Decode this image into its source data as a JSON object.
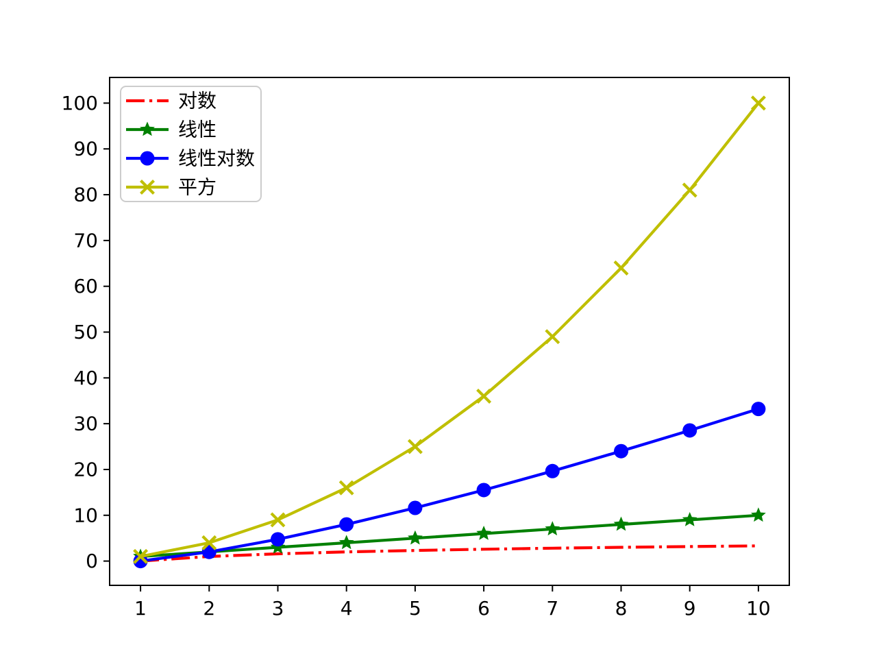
{
  "chart_data": {
    "type": "line",
    "title": "",
    "xlabel": "",
    "ylabel": "",
    "grid": false,
    "background": "#ffffff",
    "axis_color": "#000000",
    "x": [
      1,
      2,
      3,
      4,
      5,
      6,
      7,
      8,
      9,
      10
    ],
    "series": [
      {
        "id": "log",
        "name": "对数",
        "values": [
          0,
          1,
          1.58,
          2,
          2.32,
          2.58,
          2.81,
          3,
          3.17,
          3.32
        ],
        "color": "#ff0000",
        "linestyle": "dashdot",
        "marker": "none"
      },
      {
        "id": "linear",
        "name": "线性",
        "values": [
          1,
          2,
          3,
          4,
          5,
          6,
          7,
          8,
          9,
          10
        ],
        "color": "#008000",
        "linestyle": "solid",
        "marker": "star"
      },
      {
        "id": "linear-log",
        "name": "线性对数",
        "values": [
          0,
          2,
          4.75,
          8,
          11.61,
          15.51,
          19.65,
          24,
          28.53,
          33.22
        ],
        "color": "#0000ff",
        "linestyle": "solid",
        "marker": "circle"
      },
      {
        "id": "square",
        "name": "平方",
        "values": [
          1,
          4,
          9,
          16,
          25,
          36,
          49,
          64,
          81,
          100
        ],
        "color": "#bfbf00",
        "linestyle": "solid",
        "marker": "x"
      }
    ],
    "xticks": [
      1,
      2,
      3,
      4,
      5,
      6,
      7,
      8,
      9,
      10
    ],
    "xtick_labels": [
      "1",
      "2",
      "3",
      "4",
      "5",
      "6",
      "7",
      "8",
      "9",
      "10"
    ],
    "yticks": [
      0,
      10,
      20,
      30,
      40,
      50,
      60,
      70,
      80,
      90,
      100
    ],
    "ytick_labels": [
      "0",
      "10",
      "20",
      "30",
      "40",
      "50",
      "60",
      "70",
      "80",
      "90",
      "100"
    ],
    "xlim": [
      0.55,
      10.45
    ],
    "ylim": [
      -5.3,
      105.6
    ],
    "legend": {
      "position": "upper-left",
      "entries": [
        "对数",
        "线性",
        "线性对数",
        "平方"
      ]
    }
  }
}
